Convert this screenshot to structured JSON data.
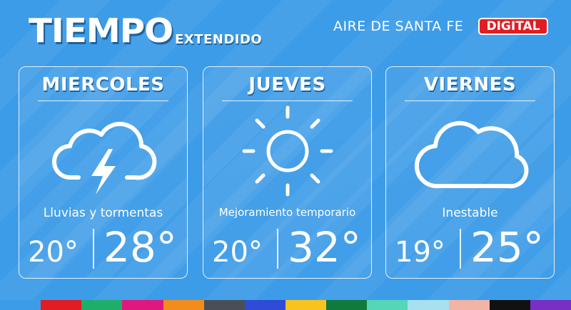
{
  "header": {
    "title": "TIEMPO",
    "subtitle": "EXTENDIDO",
    "station": "AIRE DE SANTA FE",
    "badge": "DIGITAL"
  },
  "days": [
    {
      "name": "MIERCOLES",
      "icon": "storm-cloud-icon",
      "condition": "Lluvias y tormentas",
      "min": "20°",
      "max": "28°"
    },
    {
      "name": "JUEVES",
      "icon": "sun-icon",
      "condition": "Mejoramiento temporario",
      "min": "20°",
      "max": "32°"
    },
    {
      "name": "VIERNES",
      "icon": "cloud-icon",
      "condition": "Inestable",
      "min": "19°",
      "max": "25°"
    }
  ],
  "colors": {
    "background": "#3d9ce8",
    "badge": "#e31b23",
    "footer_bar": [
      "#3d9ce8",
      "#e31b23",
      "#1fae6a",
      "#e0177f",
      "#f28c1a",
      "#4a4f57",
      "#2f4bd8",
      "#f7c31c",
      "#0f7a3c",
      "#55d6b7",
      "#a8e0f0",
      "#f2b4a4",
      "#111111",
      "#7a2fc4"
    ]
  }
}
